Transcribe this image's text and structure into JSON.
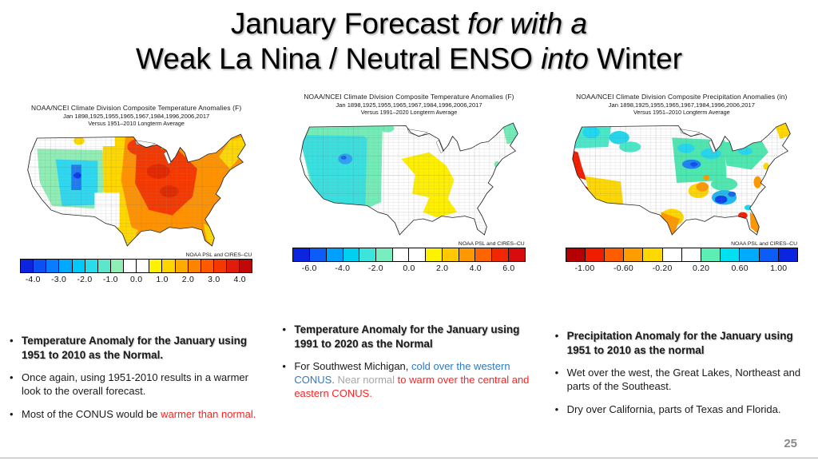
{
  "slide": {
    "title": {
      "line1": [
        {
          "text": "January Forecast ",
          "style": "plain"
        },
        {
          "text": "for with a",
          "style": "italic"
        }
      ],
      "line2": [
        {
          "text": "Weak La Nina / Neutral ENSO ",
          "style": "plain"
        },
        {
          "text": "into",
          "style": "italic"
        },
        {
          "text": " Winter",
          "style": "plain"
        }
      ]
    },
    "page_number": "25"
  },
  "colors": {
    "bullet_red": "#ff2222",
    "bullet_blue": "#2e79c0",
    "bullet_gray": "#a6a6a6",
    "page_number_gray": "#8a8a8a"
  },
  "panels": [
    {
      "id": "temperature-1951-2010",
      "map_header": {
        "line1": "NOAA/NCEI Climate Division Composite Temperature Anomalies (F)",
        "line2": "Jan   1898,1925,1955,1965,1967,1984,1996,2006,2017",
        "line3": "Versus 1951–2010 Longterm Average"
      },
      "credit": "NOAA PSL and CIRES–CU",
      "colorbar": {
        "cells": [
          "#0b24e0",
          "#0b50f2",
          "#0a7cff",
          "#00a8ff",
          "#00c8f8",
          "#2adcea",
          "#5ce6cc",
          "#8eeeb4",
          "#ffffff",
          "#ffffff",
          "#fff200",
          "#ffd400",
          "#ffaa00",
          "#ff8200",
          "#ff5a00",
          "#f53800",
          "#e01c0c",
          "#c00808"
        ],
        "ticks": [
          "-4.0",
          "-3.0",
          "-2.0",
          "-1.0",
          "0.0",
          "1.0",
          "2.0",
          "3.0",
          "4.0"
        ]
      },
      "bullets": [
        {
          "runs": [
            {
              "text": "Temperature Anomaly for the January using 1951 to 2010 as the Normal.",
              "style": "bold"
            }
          ]
        },
        {
          "runs": [
            {
              "text": "Once again, using 1951-2010 results in a warmer look to the overall forecast.",
              "style": "plain"
            }
          ]
        },
        {
          "runs": [
            {
              "text": "Most of the CONUS would be ",
              "style": "plain"
            },
            {
              "text": "warmer than normal.",
              "style": "red"
            }
          ]
        }
      ]
    },
    {
      "id": "temperature-1991-2020",
      "map_header": {
        "line1": "NOAA/NCEI Climate Division Composite Temperature Anomalies (F)",
        "line2": "Jan   1898,1925,1955,1965,1967,1984,1996,2006,2017",
        "line3": "Versus 1991–2020 Longterm Average"
      },
      "credit": "NOAA PSL and CIRES–CU",
      "colorbar": {
        "cells": [
          "#0b24e0",
          "#0b5cf8",
          "#00a0ff",
          "#00d0f0",
          "#3ce4dc",
          "#78eec0",
          "#ffffff",
          "#ffffff",
          "#fff200",
          "#ffc800",
          "#ff9800",
          "#ff6400",
          "#f02800",
          "#d80c0c"
        ],
        "ticks": [
          "-6.0",
          "-4.0",
          "-2.0",
          "0.0",
          "2.0",
          "4.0",
          "6.0"
        ]
      },
      "bullets": [
        {
          "runs": [
            {
              "text": "Temperature Anomaly for the January using 1991 to 2020 as the Normal",
              "style": "bold"
            }
          ]
        },
        {
          "runs": [
            {
              "text": "For Southwest Michigan, ",
              "style": "plain"
            },
            {
              "text": "cold over the western CONUS.",
              "style": "blue"
            },
            {
              "text": "  ",
              "style": "plain"
            },
            {
              "text": "Near normal ",
              "style": "gray"
            },
            {
              "text": "to warm over the central and eastern CONUS.",
              "style": "red"
            }
          ]
        }
      ]
    },
    {
      "id": "precipitation-1951-2010",
      "map_header": {
        "line1": "NOAA/NCEI Climate Division Composite Precipitation Anomalies (in)",
        "line2": "Jan   1898,1925,1955,1965,1967,1984,1996,2006,2017",
        "line3": "Versus 1951–2010 Longterm Average"
      },
      "credit": "NOAA PSL and CIRES–CU",
      "colorbar": {
        "cells": [
          "#b40000",
          "#f01c00",
          "#ff5c00",
          "#ff9c00",
          "#ffd800",
          "#ffffff",
          "#ffffff",
          "#5ceeb4",
          "#00e0f0",
          "#00aaff",
          "#0b5cf8",
          "#0b24e0"
        ],
        "ticks": [
          "-1.00",
          "-0.60",
          "-0.20",
          "0.20",
          "0.60",
          "1.00"
        ]
      },
      "bullets": [
        {
          "runs": [
            {
              "text": "Precipitation Anomaly for the January using 1951 to 2010 as the normal",
              "style": "bold"
            }
          ]
        },
        {
          "runs": [
            {
              "text": "Wet over the west, the Great Lakes, Northeast and parts of the Southeast.",
              "style": "plain"
            }
          ]
        },
        {
          "runs": [
            {
              "text": "Dry over California, parts of Texas and Florida.",
              "style": "plain"
            }
          ]
        }
      ]
    }
  ]
}
